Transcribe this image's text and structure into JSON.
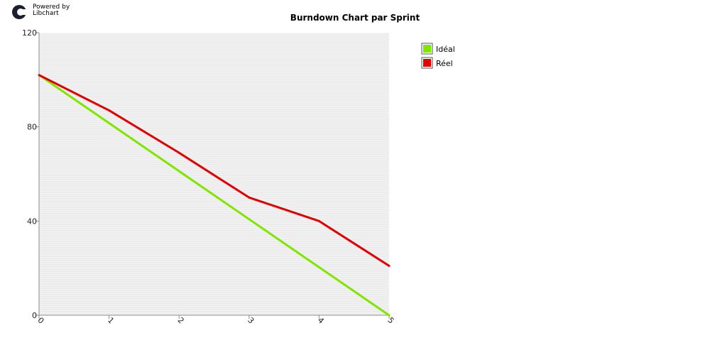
{
  "branding": {
    "line1": "Powered by",
    "line2": "Libchart"
  },
  "chart_data": {
    "type": "line",
    "title": "Burndown Chart par Sprint",
    "xlabel": "",
    "ylabel": "",
    "x": [
      0,
      1,
      2,
      3,
      4,
      5
    ],
    "x_tick_labels": [
      "0",
      "1",
      "2",
      "3",
      "4",
      "5"
    ],
    "y_tick_labels": [
      "0",
      "40",
      "80",
      "120"
    ],
    "y_ticks": [
      0,
      40,
      80,
      120
    ],
    "ylim": [
      0,
      120
    ],
    "grid": true,
    "legend_position": "top-right",
    "series": [
      {
        "name": "Idéal",
        "color": "#7fe600",
        "values": [
          102,
          81.6,
          61.2,
          40.8,
          20.4,
          0
        ]
      },
      {
        "name": "Réel",
        "color": "#e20000",
        "values": [
          102,
          87,
          69,
          50,
          40,
          21
        ]
      }
    ]
  },
  "colors": {
    "plot_background": "#f3f3f3",
    "grid_line": "#e4e4e4",
    "axis": "#8c8c8c"
  }
}
